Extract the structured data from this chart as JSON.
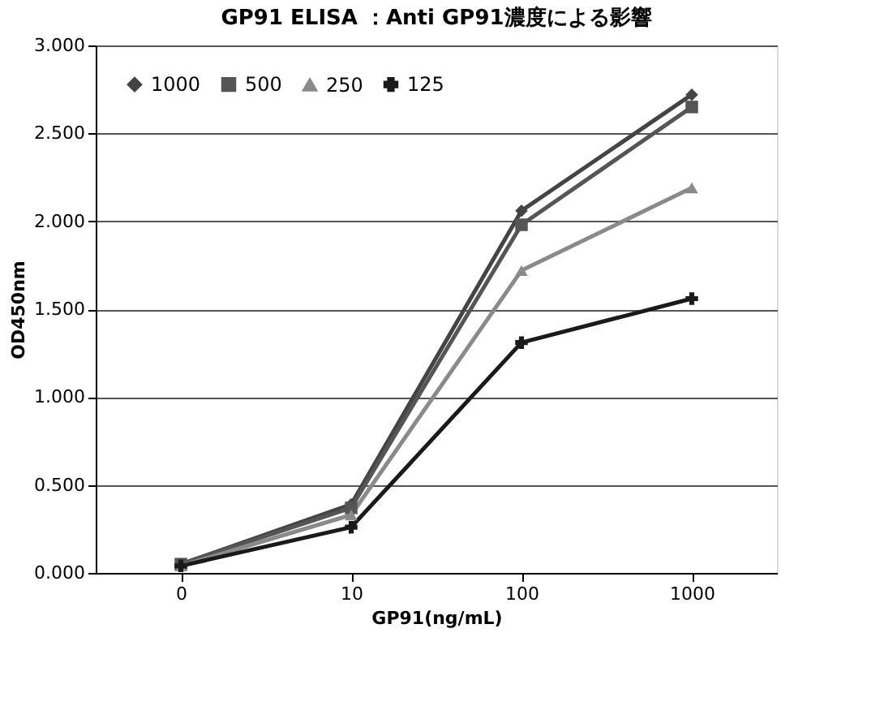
{
  "chart_data": {
    "type": "line",
    "title": "GP91 ELISA ：Anti GP91濃度による影響",
    "xlabel": "GP91(ng/mL)",
    "ylabel": "OD450nm",
    "categories": [
      "0",
      "10",
      "100",
      "1000"
    ],
    "series": [
      {
        "name": "1000",
        "color": "#444444",
        "marker": "diamond",
        "values": [
          0.05,
          0.39,
          2.06,
          2.72
        ]
      },
      {
        "name": "500",
        "color": "#555555",
        "marker": "square",
        "values": [
          0.05,
          0.37,
          1.98,
          2.65
        ]
      },
      {
        "name": "250",
        "color": "#8a8a8a",
        "marker": "triangle",
        "values": [
          0.04,
          0.33,
          1.72,
          2.19
        ]
      },
      {
        "name": "125",
        "color": "#1a1a1a",
        "marker": "cross",
        "values": [
          0.04,
          0.26,
          1.31,
          1.56
        ]
      }
    ],
    "ylim": [
      0,
      3
    ],
    "yticks": [
      {
        "value": 0,
        "label": "0.000"
      },
      {
        "value": 0.5,
        "label": "0.500"
      },
      {
        "value": 1,
        "label": "1.000"
      },
      {
        "value": 1.5,
        "label": "1.500"
      },
      {
        "value": 2,
        "label": "2.000"
      },
      {
        "value": 2.5,
        "label": "2.500"
      },
      {
        "value": 3,
        "label": "3.000"
      }
    ],
    "grid": "y",
    "legend": "top left",
    "line_style": "solid"
  }
}
